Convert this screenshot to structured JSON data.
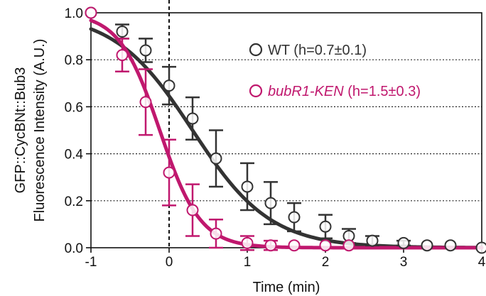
{
  "chart_data": {
    "type": "scatter",
    "title": "",
    "xlabel": "Time (min)",
    "ylabel_lines": [
      "GFP::CycBNt::Bub3",
      "Fluorescence Intensity (A.U.)"
    ],
    "xlim": [
      -1,
      4
    ],
    "ylim": [
      0,
      1.0
    ],
    "xticks": [
      -1,
      0,
      1,
      2,
      3,
      4
    ],
    "xtick_labels": [
      "-1",
      "0",
      "1",
      "2",
      "3",
      "4"
    ],
    "yticks": [
      0,
      0.2,
      0.4,
      0.6,
      0.8,
      1.0
    ],
    "ytick_labels": [
      "0.0",
      "0.2",
      "0.4",
      "0.6",
      "0.8",
      "1.0"
    ],
    "grid": "horizontal dotted",
    "reference_line_x": 0,
    "legend_position": "top-right",
    "series": [
      {
        "name": "WT",
        "legend_suffix": " (h=0.7±0.1)",
        "italic_name": false,
        "color": "#333333",
        "points": [
          {
            "x": -1.0,
            "y": 1.0,
            "err": 0
          },
          {
            "x": -0.6,
            "y": 0.92,
            "err": 0.03
          },
          {
            "x": -0.3,
            "y": 0.84,
            "err": 0.05
          },
          {
            "x": 0.0,
            "y": 0.69,
            "err": 0.08
          },
          {
            "x": 0.3,
            "y": 0.55,
            "err": 0.09
          },
          {
            "x": 0.6,
            "y": 0.38,
            "err": 0.12
          },
          {
            "x": 1.0,
            "y": 0.26,
            "err": 0.1
          },
          {
            "x": 1.3,
            "y": 0.19,
            "err": 0.09
          },
          {
            "x": 1.6,
            "y": 0.13,
            "err": 0.06
          },
          {
            "x": 2.0,
            "y": 0.09,
            "err": 0.05
          },
          {
            "x": 2.3,
            "y": 0.05,
            "err": 0.03
          },
          {
            "x": 2.6,
            "y": 0.03,
            "err": 0.02
          },
          {
            "x": 3.0,
            "y": 0.02,
            "err": 0.01
          },
          {
            "x": 3.3,
            "y": 0.01,
            "err": 0
          },
          {
            "x": 3.6,
            "y": 0.01,
            "err": 0
          },
          {
            "x": 4.0,
            "y": 0.0,
            "err": 0
          }
        ],
        "fit": {
          "x0": 0.3,
          "width": 0.5
        }
      },
      {
        "name": "bubR1-KEN",
        "legend_suffix": " (h=1.5±0.3)",
        "italic_name": true,
        "color": "#c0186e",
        "points": [
          {
            "x": -1.0,
            "y": 1.0,
            "err": 0
          },
          {
            "x": -0.6,
            "y": 0.82,
            "err": 0.07
          },
          {
            "x": -0.3,
            "y": 0.62,
            "err": 0.14
          },
          {
            "x": 0.0,
            "y": 0.32,
            "err": 0.14
          },
          {
            "x": 0.3,
            "y": 0.16,
            "err": 0.11
          },
          {
            "x": 0.6,
            "y": 0.06,
            "err": 0.06
          },
          {
            "x": 1.0,
            "y": 0.02,
            "err": 0.03
          },
          {
            "x": 1.3,
            "y": 0.01,
            "err": 0.02
          },
          {
            "x": 1.6,
            "y": 0.01,
            "err": 0
          },
          {
            "x": 2.0,
            "y": 0.01,
            "err": 0
          },
          {
            "x": 2.3,
            "y": 0.01,
            "err": 0
          }
        ],
        "fit": {
          "x0": -0.12,
          "width": 0.26
        }
      }
    ]
  }
}
